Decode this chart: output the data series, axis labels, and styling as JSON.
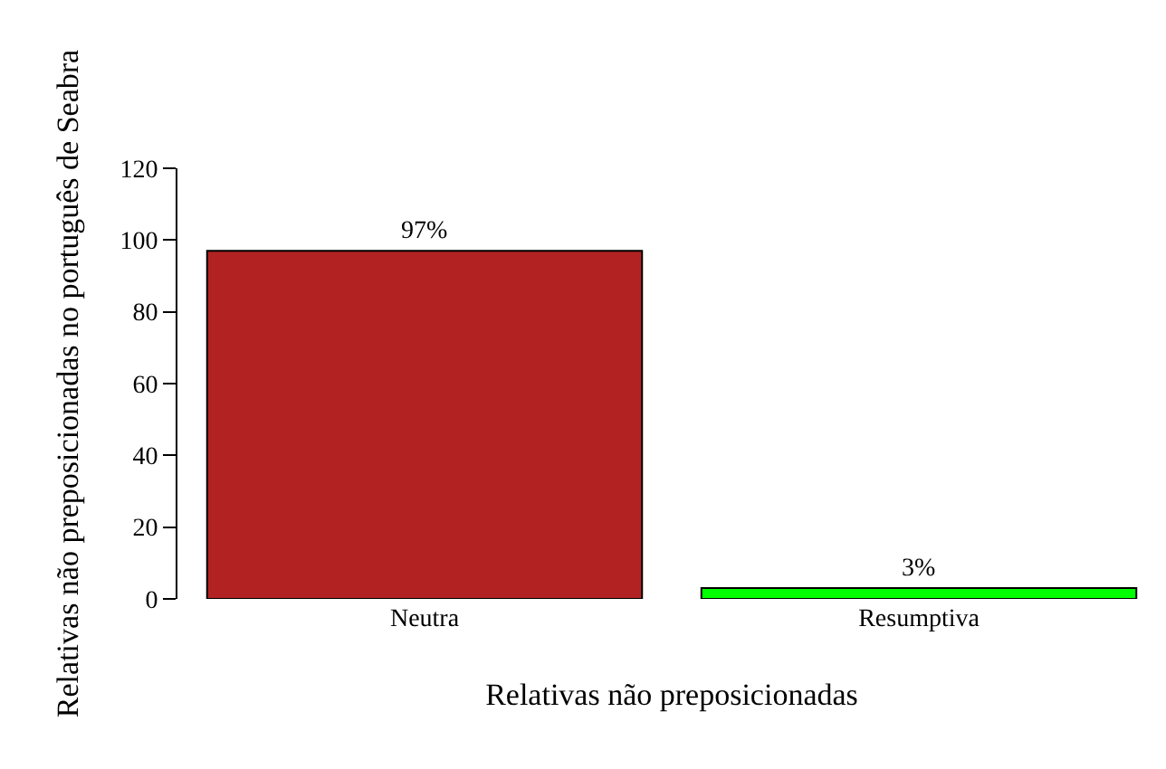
{
  "chart_data": {
    "type": "bar",
    "xlabel": "Relativas não preposicionadas",
    "ylabel": "Relativas não preposicionadas no português de Seabra",
    "categories": [
      "Neutra",
      "Resumptiva"
    ],
    "values": [
      97,
      3
    ],
    "colors": [
      "#b22222",
      "#00ff00"
    ],
    "value_labels": [
      "97%",
      "3%"
    ],
    "ylim": [
      0,
      120
    ],
    "yticks": [
      0,
      20,
      40,
      60,
      80,
      100,
      120
    ],
    "legend": false
  }
}
